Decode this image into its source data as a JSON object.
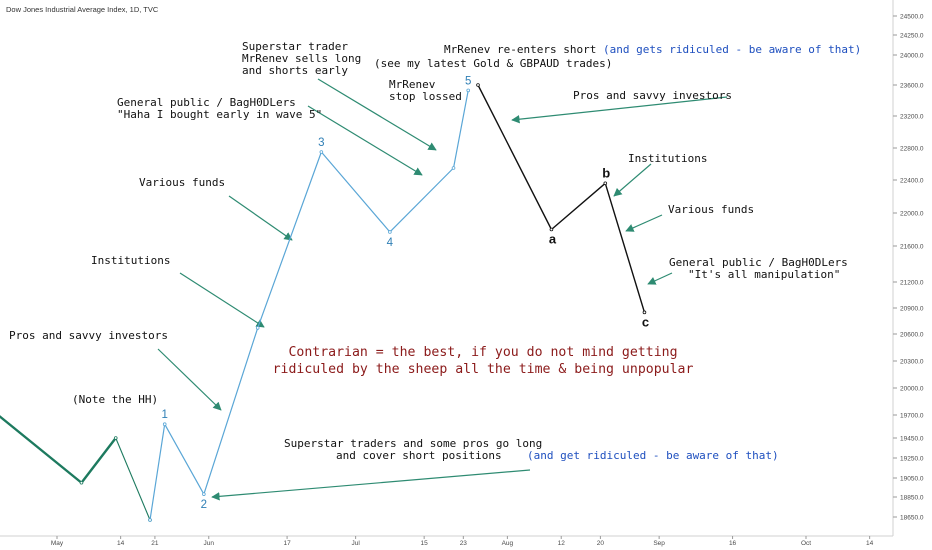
{
  "header": {
    "title": "Dow Jones Industrial Average Index, 1D, TVC"
  },
  "colors": {
    "pre_wave": "#1d7a5f",
    "impulse": "#5aa6d6",
    "correction": "#111111",
    "arrow": "#2e8b72",
    "wave_number": "#2f7fb5",
    "center_note": "#8b1a1a",
    "blue_note": "#1e4fbf"
  },
  "chart_data": {
    "type": "line",
    "ylim": [
      18450,
      24650
    ],
    "y_ticks": [
      "18650.0",
      "18850.0",
      "19050.0",
      "19250.0",
      "19450.0",
      "19700.0",
      "20000.0",
      "20300.0",
      "20600.0",
      "20900.0",
      "21200.0",
      "21600.0",
      "22000.0",
      "22400.0",
      "22800.0",
      "23200.0",
      "23600.0",
      "24000.0",
      "24250.0",
      "24500.0"
    ],
    "x_ticks": [
      "May",
      "14",
      "21",
      "Jun",
      "17",
      "Jul",
      "15",
      "23",
      "Aug",
      "12",
      "20",
      "Sep",
      "16",
      "Oct",
      "14"
    ],
    "series": [
      {
        "role": "pre-wave",
        "points": [
          [
            "Apr 26",
            19700
          ],
          [
            "May 6",
            19000
          ],
          [
            "May 13",
            19450
          ],
          [
            "May 20",
            18620
          ]
        ]
      },
      {
        "role": "impulse",
        "points": [
          [
            "May 20",
            18620
          ],
          [
            "May 23",
            19600
          ],
          [
            "May 31",
            18880
          ],
          [
            "Jun 11",
            20670
          ],
          [
            "Jun 24",
            22750
          ],
          [
            "Jul 8",
            21770
          ],
          [
            "Jul 21",
            22550
          ],
          [
            "Jul 24",
            23530
          ]
        ]
      },
      {
        "role": "correction",
        "points": [
          [
            "Jul 26",
            23600
          ],
          [
            "Aug 10",
            21800
          ],
          [
            "Aug 21",
            22360
          ],
          [
            "Aug 29",
            20850
          ]
        ]
      }
    ],
    "wave_labels": [
      {
        "text": "1",
        "at": [
          "May 23",
          19600
        ],
        "pos": "above"
      },
      {
        "text": "2",
        "at": [
          "May 31",
          18880
        ],
        "pos": "below"
      },
      {
        "text": "3",
        "at": [
          "Jun 24",
          22750
        ],
        "pos": "above"
      },
      {
        "text": "4",
        "at": [
          "Jul 8",
          21770
        ],
        "pos": "below"
      },
      {
        "text": "5",
        "at": [
          "Jul 24",
          23530
        ],
        "pos": "above"
      },
      {
        "text": "a",
        "at": [
          "Aug 10",
          21800
        ],
        "pos": "below"
      },
      {
        "text": "b",
        "at": [
          "Aug 21",
          22360
        ],
        "pos": "above"
      },
      {
        "text": "c",
        "at": [
          "Aug 29",
          20850
        ],
        "pos": "below"
      }
    ],
    "annotations": [
      {
        "lines": [
          "Superstar trader",
          "MrRenev sells long",
          "and shorts early"
        ]
      },
      {
        "lines": [
          "MrRenev re-enters short"
        ],
        "extra_blue": "(and gets ridiculed - be aware of that)"
      },
      {
        "lines": [
          "(see my latest Gold & GBPAUD trades)"
        ]
      },
      {
        "lines": [
          "MrRenev",
          "stop lossed"
        ]
      },
      {
        "lines": [
          "General public / BagH0DLers",
          "\"Haha I bought early in wave 5\""
        ]
      },
      {
        "lines": [
          "Pros and savvy investors"
        ]
      },
      {
        "lines": [
          "Institutions"
        ]
      },
      {
        "lines": [
          "Various funds"
        ]
      },
      {
        "lines": [
          "Various funds"
        ]
      },
      {
        "lines": [
          "General public / BagH0DLers",
          "\"It's all manipulation\""
        ]
      },
      {
        "lines": [
          "Institutions"
        ]
      },
      {
        "lines": [
          "Pros and savvy investors"
        ]
      },
      {
        "lines": [
          "(Note the HH)"
        ]
      },
      {
        "lines": [
          "Superstar traders and some pros go long",
          "and cover short positions"
        ],
        "extra_blue": "(and get ridiculed - be aware of that)"
      }
    ],
    "center_note": [
      "Contrarian = the best, if you do not mind getting",
      "ridiculed by the sheep all the time & being unpopular"
    ]
  }
}
